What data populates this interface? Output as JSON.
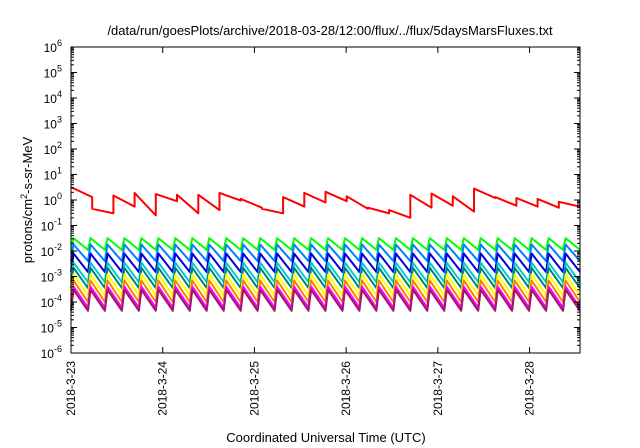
{
  "chart_data": {
    "type": "line",
    "title": "/data/run/goesPlots/archive/2018-03-28/12:00/flux/../flux/5daysMarsFluxes.txt",
    "xlabel": "Coordinated Universal Time (UTC)",
    "ylabel": {
      "base": "protons/cm",
      "sup": "2",
      "rest": "-s-sr-MeV"
    },
    "yscale": "log",
    "ylim_exponents": [
      -6,
      6
    ],
    "xlim_days": [
      0,
      5.55
    ],
    "x_ticks": [
      "2018-3-23",
      "2018-3-24",
      "2018-3-25",
      "2018-3-26",
      "2018-3-27",
      "2018-3-28"
    ],
    "y_tick_base": "10",
    "y_tick_exponents": [
      "6",
      "5",
      "4",
      "3",
      "2",
      "1",
      "0",
      "-1",
      "-2",
      "-3",
      "-4",
      "-5",
      "-6"
    ],
    "grid": false,
    "legend": "none",
    "series": [
      {
        "color": "#ff0000",
        "type": "sawtooth",
        "high": [
          3.2,
          0.45,
          1.5,
          1.9,
          1.7,
          1.6,
          1.6,
          1.9,
          1.1,
          0.45,
          1.3,
          1.9,
          2.1,
          1.4,
          0.5,
          0.4,
          1.6,
          1.8,
          1.4,
          2.8,
          1.3,
          1.2,
          1.1,
          0.85
        ],
        "low": [
          1.3,
          0.3,
          0.55,
          0.25,
          0.9,
          0.3,
          0.4,
          0.95,
          0.5,
          0.3,
          0.55,
          0.8,
          0.9,
          0.45,
          0.3,
          0.2,
          0.5,
          0.6,
          0.35,
          1.2,
          0.6,
          0.55,
          0.5,
          0.55
        ]
      },
      {
        "color": "#00ff00",
        "type": "sawtooth",
        "cycles": 30,
        "high": 0.032,
        "low": 0.011
      },
      {
        "color": "#007fff",
        "type": "sawtooth",
        "cycles": 30,
        "high": 0.018,
        "low": 0.004
      },
      {
        "color": "#0000dd",
        "type": "sawtooth",
        "cycles": 30,
        "high": 0.008,
        "low": 0.0015
      },
      {
        "color": "#00cccc",
        "type": "sawtooth",
        "cycles": 30,
        "high": 0.0035,
        "low": 0.0006
      },
      {
        "color": "#008080",
        "type": "sawtooth",
        "cycles": 30,
        "high": 0.0022,
        "low": 0.00035
      },
      {
        "color": "#ffff00",
        "type": "sawtooth",
        "cycles": 30,
        "high": 0.0012,
        "low": 0.00018
      },
      {
        "color": "#ff7f00",
        "type": "sawtooth",
        "cycles": 30,
        "high": 0.0007,
        "low": 0.0001
      },
      {
        "color": "#ff00ff",
        "type": "sawtooth",
        "cycles": 30,
        "high": 0.0004,
        "low": 6e-05
      },
      {
        "color": "#9b1a6a",
        "type": "sawtooth",
        "cycles": 30,
        "high": 0.0003,
        "low": 4.5e-05
      }
    ]
  }
}
